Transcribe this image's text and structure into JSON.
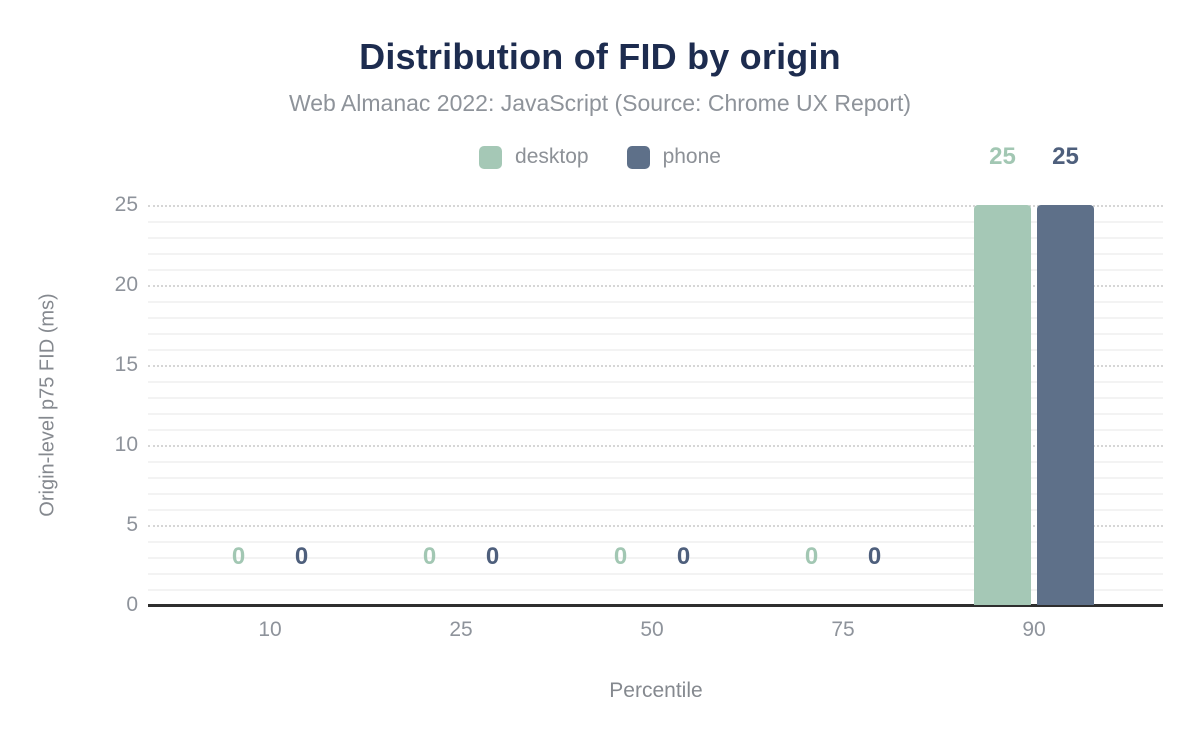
{
  "chart_data": {
    "type": "bar",
    "title": "Distribution of FID by origin",
    "subtitle": "Web Almanac 2022: JavaScript (Source: Chrome UX Report)",
    "xlabel": "Percentile",
    "ylabel": "Origin-level p75 FID (ms)",
    "categories": [
      "10",
      "25",
      "50",
      "75",
      "90"
    ],
    "series": [
      {
        "name": "desktop",
        "color": "#a5c8b6",
        "label_color": "#a2c7b3",
        "values": [
          0,
          0,
          0,
          0,
          25
        ]
      },
      {
        "name": "phone",
        "color": "#5e7089",
        "label_color": "#4e5f7c",
        "values": [
          0,
          0,
          0,
          0,
          25
        ]
      }
    ],
    "ylim": [
      0,
      25
    ],
    "yticks": [
      0,
      5,
      10,
      15,
      20,
      25
    ],
    "minor_grid_step": 1,
    "major_grid_step": 5,
    "grid": true,
    "legend_position": "top-center"
  },
  "colors": {
    "title": "#1d2c4f",
    "subtitle": "#8e939a",
    "axis_text": "#8e939b",
    "axis_line": "#2e2e2e",
    "major_grid": "#d6d6d6",
    "minor_grid": "#f3f3f3",
    "background": "#ffffff"
  }
}
